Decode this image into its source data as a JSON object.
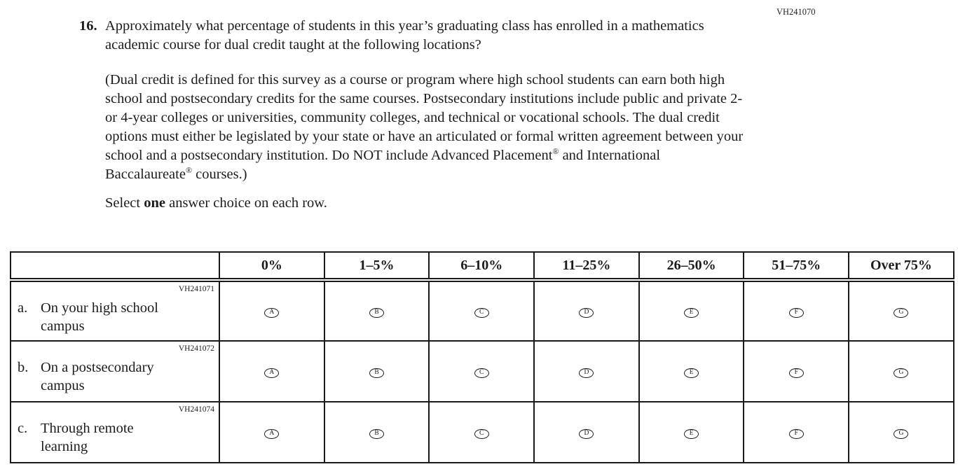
{
  "meta": {
    "form_code_main": "VH241070"
  },
  "question": {
    "number": "16.",
    "prompt": "Approximately what percentage of students in this year’s graduating class has enrolled in a mathematics academic course for dual credit taught at the following locations?",
    "definition": {
      "part1": "(Dual credit is defined for this survey as a course or program where high school students can earn both high school and postsecondary credits for the same courses. Postsecondary institutions include public and private 2- or 4-year colleges or universities, community colleges, and technical or vocational schools. The dual credit options must either be legislated by your state or have an articulated or formal written agreement between your school and a postsecondary institution. Do NOT include Advanced Placement",
      "reg1": "®",
      "part2": " and International Baccalaureate",
      "reg2": "®",
      "part3": " courses.)"
    },
    "instruction": {
      "prefix": "Select ",
      "bold": "one",
      "suffix": " answer choice on each row."
    }
  },
  "table": {
    "columns": [
      "0%",
      "1–5%",
      "6–10%",
      "11–25%",
      "26–50%",
      "51–75%",
      "Over 75%"
    ],
    "rows": [
      {
        "code": "VH241071",
        "item_letter": "a.",
        "label_line1": "On your high school",
        "label_line2": "campus",
        "options": [
          "A",
          "B",
          "C",
          "D",
          "E",
          "F",
          "G"
        ]
      },
      {
        "code": "VH241072",
        "item_letter": "b.",
        "label_line1": "On a postsecondary",
        "label_line2": "campus",
        "options": [
          "A",
          "B",
          "C",
          "D",
          "E",
          "F",
          "G"
        ]
      },
      {
        "code": "VH241074",
        "item_letter": "c.",
        "label_line1": "Through remote",
        "label_line2": "learning",
        "options": [
          "A",
          "B",
          "C",
          "D",
          "E",
          "F",
          "G"
        ]
      }
    ]
  }
}
